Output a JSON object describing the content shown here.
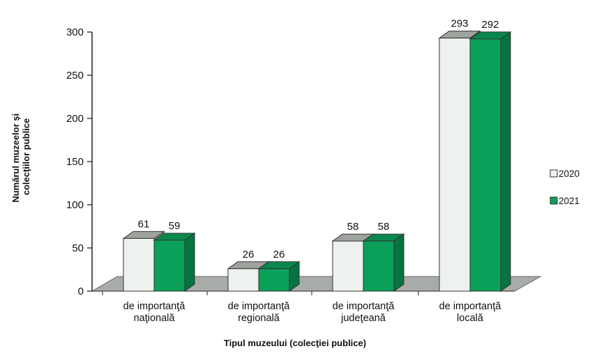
{
  "chart_data": {
    "type": "bar",
    "categories": [
      [
        "de importanţă",
        "naţională"
      ],
      [
        "de importanţă",
        "regională"
      ],
      [
        "de importanţă",
        "judeţeană"
      ],
      [
        "de importanţă",
        "locală"
      ]
    ],
    "series": [
      {
        "name": "2020",
        "values": [
          61,
          26,
          58,
          293
        ],
        "color": "#eef2ee"
      },
      {
        "name": "2021",
        "values": [
          59,
          26,
          58,
          292
        ],
        "color": "#0aa05a"
      }
    ],
    "xlabel": "Tipul muzeului (colecţiei publice)",
    "ylabel": [
      "Numărul muzeelor şi",
      "colecţiilor publice"
    ],
    "ylim": [
      0,
      300
    ],
    "yticks": [
      0,
      50,
      100,
      150,
      200,
      250,
      300
    ],
    "grid": false,
    "legend_position": "right",
    "three_d": true,
    "floor_color": "#a8aca8"
  }
}
